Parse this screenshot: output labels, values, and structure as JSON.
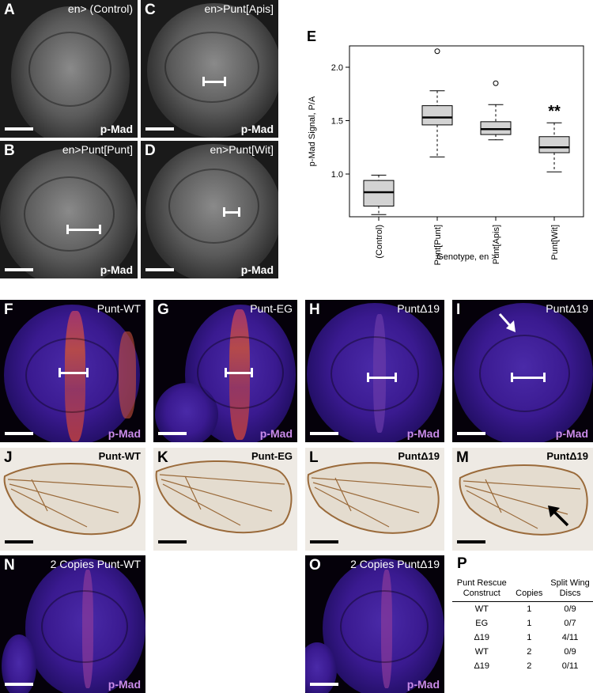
{
  "panels": {
    "A": {
      "letter": "A",
      "title": "en> (Control)",
      "stain": "p-Mad"
    },
    "B": {
      "letter": "B",
      "title": "en>Punt[Punt]",
      "stain": "p-Mad"
    },
    "C": {
      "letter": "C",
      "title": "en>Punt[Apis]",
      "stain": "p-Mad"
    },
    "D": {
      "letter": "D",
      "title": "en>Punt[Wit]",
      "stain": "p-Mad"
    },
    "F": {
      "letter": "F",
      "title": "Punt-WT",
      "stain": "p-Mad"
    },
    "G": {
      "letter": "G",
      "title": "Punt-EG",
      "stain": "p-Mad"
    },
    "H": {
      "letter": "H",
      "title": "PuntΔ19",
      "stain": "p-Mad"
    },
    "I": {
      "letter": "I",
      "title": "PuntΔ19",
      "stain": "p-Mad"
    },
    "J": {
      "letter": "J",
      "title": "Punt-WT"
    },
    "K": {
      "letter": "K",
      "title": "Punt-EG"
    },
    "L": {
      "letter": "L",
      "title": "PuntΔ19"
    },
    "M": {
      "letter": "M",
      "title": "PuntΔ19"
    },
    "N": {
      "letter": "N",
      "title": "2 Copies Punt-WT",
      "stain": "p-Mad"
    },
    "O": {
      "letter": "O",
      "title": "2 Copies PuntΔ19",
      "stain": "p-Mad"
    }
  },
  "chart_letter": "E",
  "chart_data": {
    "type": "box",
    "ylabel": "p-Mad Signal, P/A",
    "xlabel": "Genotype, en >",
    "ylim": [
      0.6,
      2.2
    ],
    "yticks": [
      1.0,
      1.5,
      2.0
    ],
    "categories": [
      "(Control)",
      "Punt[Punt]",
      "Punt[Apis]",
      "Punt[Wit]"
    ],
    "boxes": [
      {
        "min": 0.62,
        "q1": 0.7,
        "median": 0.83,
        "q3": 0.94,
        "max": 0.99,
        "outliers": []
      },
      {
        "min": 1.16,
        "q1": 1.46,
        "median": 1.53,
        "q3": 1.64,
        "max": 1.78,
        "outliers": [
          2.15
        ]
      },
      {
        "min": 1.32,
        "q1": 1.37,
        "median": 1.42,
        "q3": 1.49,
        "max": 1.65,
        "outliers": [
          1.85
        ]
      },
      {
        "min": 1.02,
        "q1": 1.2,
        "median": 1.25,
        "q3": 1.35,
        "max": 1.48,
        "outliers": []
      }
    ],
    "annotation": {
      "category": "Punt[Wit]",
      "text": "**"
    }
  },
  "table": {
    "letter": "P",
    "headers": [
      "Punt Rescue Construct",
      "Copies",
      "Split Wing Discs"
    ],
    "rows": [
      [
        "WT",
        "1",
        "0/9"
      ],
      [
        "EG",
        "1",
        "0/7"
      ],
      [
        "Δ19",
        "1",
        "4/11"
      ],
      [
        "WT",
        "2",
        "0/9"
      ],
      [
        "Δ19",
        "2",
        "0/11"
      ]
    ]
  }
}
